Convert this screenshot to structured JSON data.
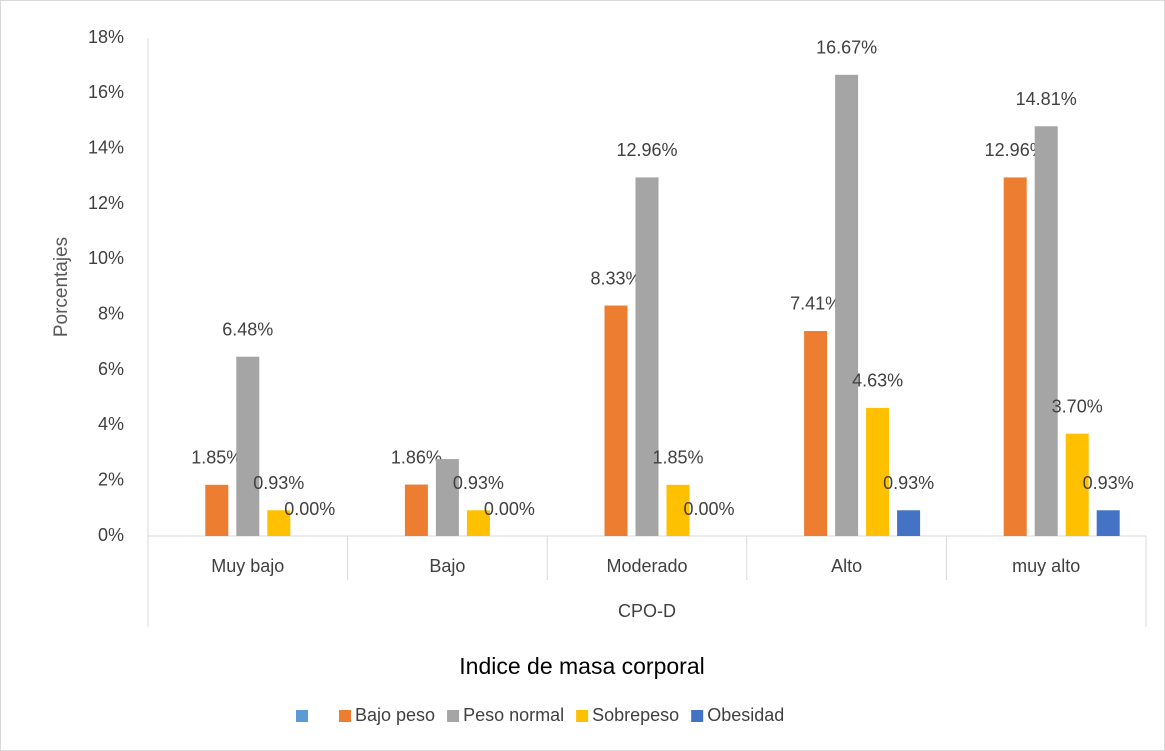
{
  "chart_data": {
    "type": "bar",
    "y_label": "Porcentajes",
    "x_group_label": "CPO-D",
    "legend_title": "Indice de masa corporal",
    "legend": "bottom",
    "grid": false,
    "categories": [
      "Muy bajo",
      "Bajo",
      "Moderado",
      "Alto",
      "muy alto"
    ],
    "ylim": [
      0,
      18
    ],
    "yticks": [
      {
        "value": 0,
        "label": "0%"
      },
      {
        "value": 2,
        "label": "2%"
      },
      {
        "value": 4,
        "label": "4%"
      },
      {
        "value": 6,
        "label": "6%"
      },
      {
        "value": 8,
        "label": "8%"
      },
      {
        "value": 10,
        "label": "10%"
      },
      {
        "value": 12,
        "label": "12%"
      },
      {
        "value": 14,
        "label": "14%"
      },
      {
        "value": 16,
        "label": "16%"
      },
      {
        "value": 18,
        "label": "18%"
      }
    ],
    "series": [
      {
        "name": null,
        "color": "#5b9bd5",
        "values": [
          null,
          null,
          null,
          null,
          null
        ]
      },
      {
        "name": "Bajo peso",
        "color": "#ed7d31",
        "values": [
          1.85,
          1.86,
          8.33,
          7.41,
          12.96
        ],
        "value_labels": [
          "1.85%",
          "1.86%",
          "8.33%",
          "7.41%",
          "12.96%"
        ]
      },
      {
        "name": "Peso normal",
        "color": "#a5a5a5",
        "values": [
          6.48,
          2.78,
          12.96,
          16.67,
          14.81
        ],
        "value_labels": [
          "6.48%",
          null,
          "12.96%",
          "16.67%",
          "14.81%"
        ]
      },
      {
        "name": "Sobrepeso",
        "color": "#ffc000",
        "values": [
          0.93,
          0.93,
          1.85,
          4.63,
          3.7
        ],
        "value_labels": [
          "0.93%",
          "0.93%",
          "1.85%",
          "4.63%",
          "3.70%"
        ]
      },
      {
        "name": "Obesidad",
        "color": "#4472c4",
        "values": [
          0,
          0,
          0,
          0.93,
          0.93
        ],
        "value_labels": [
          "0.00%",
          "0.00%",
          "0.00%",
          "0.93%",
          "0.93%"
        ]
      }
    ]
  }
}
